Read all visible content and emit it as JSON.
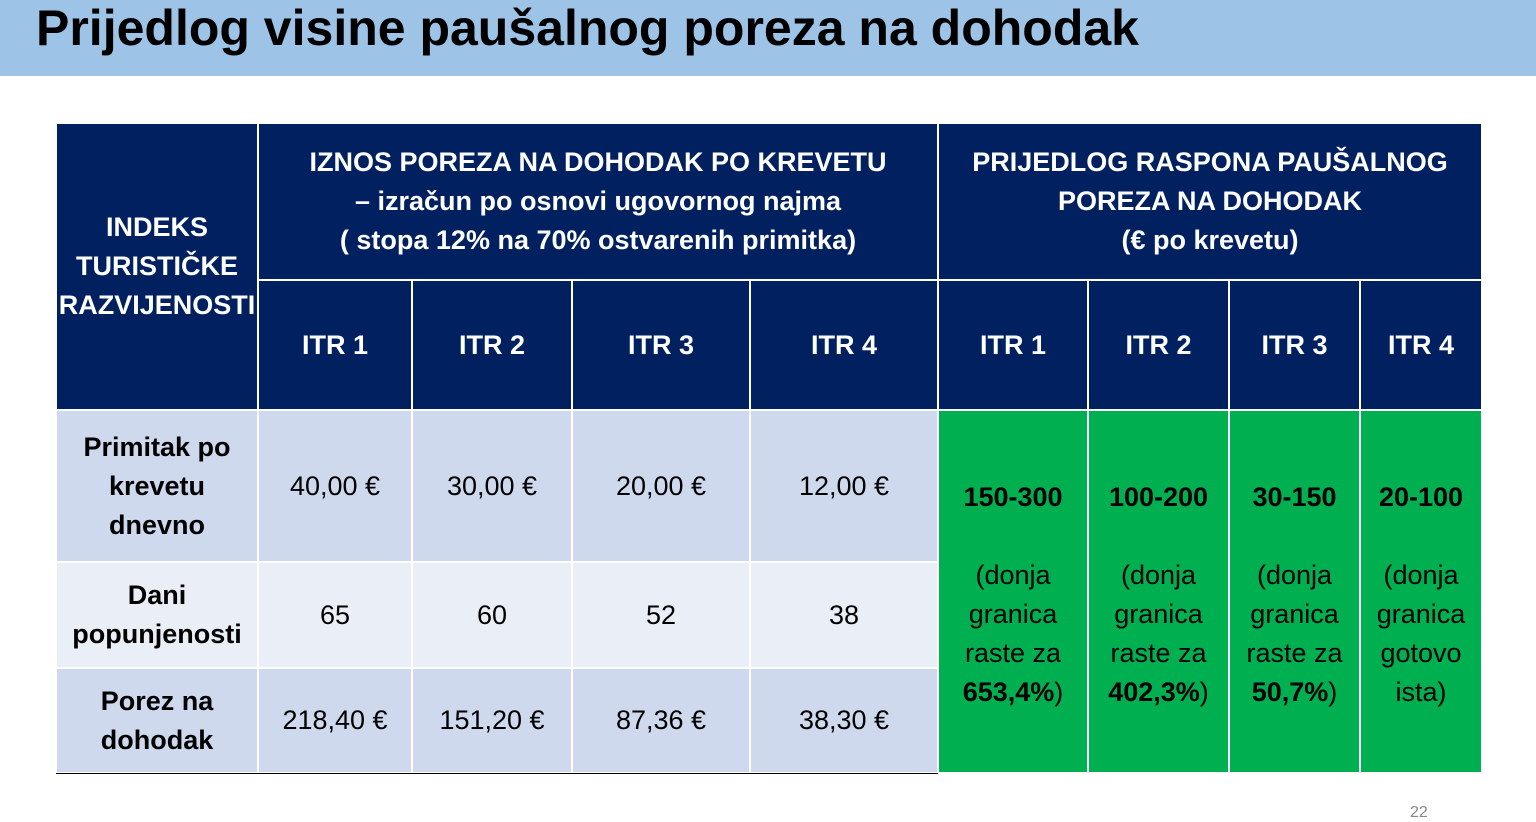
{
  "header": {
    "title": "Prijedlog visine paušalnog poreza na dohodak"
  },
  "table": {
    "corner": [
      "INDEKS",
      "TURISTIČKE",
      "RAZVIJENOSTI"
    ],
    "group_headers": [
      [
        "IZNOS POREZA NA DOHODAK PO KREVETU",
        "– izračun po osnovi ugovornog najma",
        "( stopa 12% na 70% ostvarenih primitka)"
      ],
      [
        "PRIJEDLOG RASPONA PAUŠALNOG",
        "POREZA NA DOHODAK",
        "(€ po krevetu)"
      ]
    ],
    "columns": [
      "ITR 1",
      "ITR 2",
      "ITR 3",
      "ITR 4",
      "ITR 1",
      "ITR 2",
      "ITR 3",
      "ITR 4"
    ],
    "rows": [
      {
        "label": [
          "Primitak po",
          "krevetu",
          "dnevno"
        ],
        "values": [
          "40,00 €",
          "30,00 €",
          "20,00 €",
          "12,00 €"
        ]
      },
      {
        "label": [
          "Dani",
          "popunjenosti"
        ],
        "values": [
          "65",
          "60",
          "52",
          "38"
        ]
      },
      {
        "label": [
          "Porez na",
          "dohodak"
        ],
        "values": [
          "218,40 €",
          "151,20 €",
          "87,36 €",
          "38,30 €"
        ]
      }
    ],
    "proposals": [
      {
        "range": "150-300",
        "note": [
          "(donja",
          "granica",
          "raste za"
        ],
        "note_value": "653,4%",
        "note_end": ")"
      },
      {
        "range": "100-200",
        "note": [
          "(donja",
          "granica",
          "raste za"
        ],
        "note_value": "402,3%",
        "note_end": ")"
      },
      {
        "range": "30-150",
        "note": [
          "(donja",
          "granica",
          "raste za"
        ],
        "note_value": "50,7%",
        "note_end": ")"
      },
      {
        "range": "20-100",
        "note": [
          "(donja",
          "granica",
          "gotovo",
          "ista)"
        ]
      }
    ]
  },
  "footer": {
    "page_number": "22"
  }
}
